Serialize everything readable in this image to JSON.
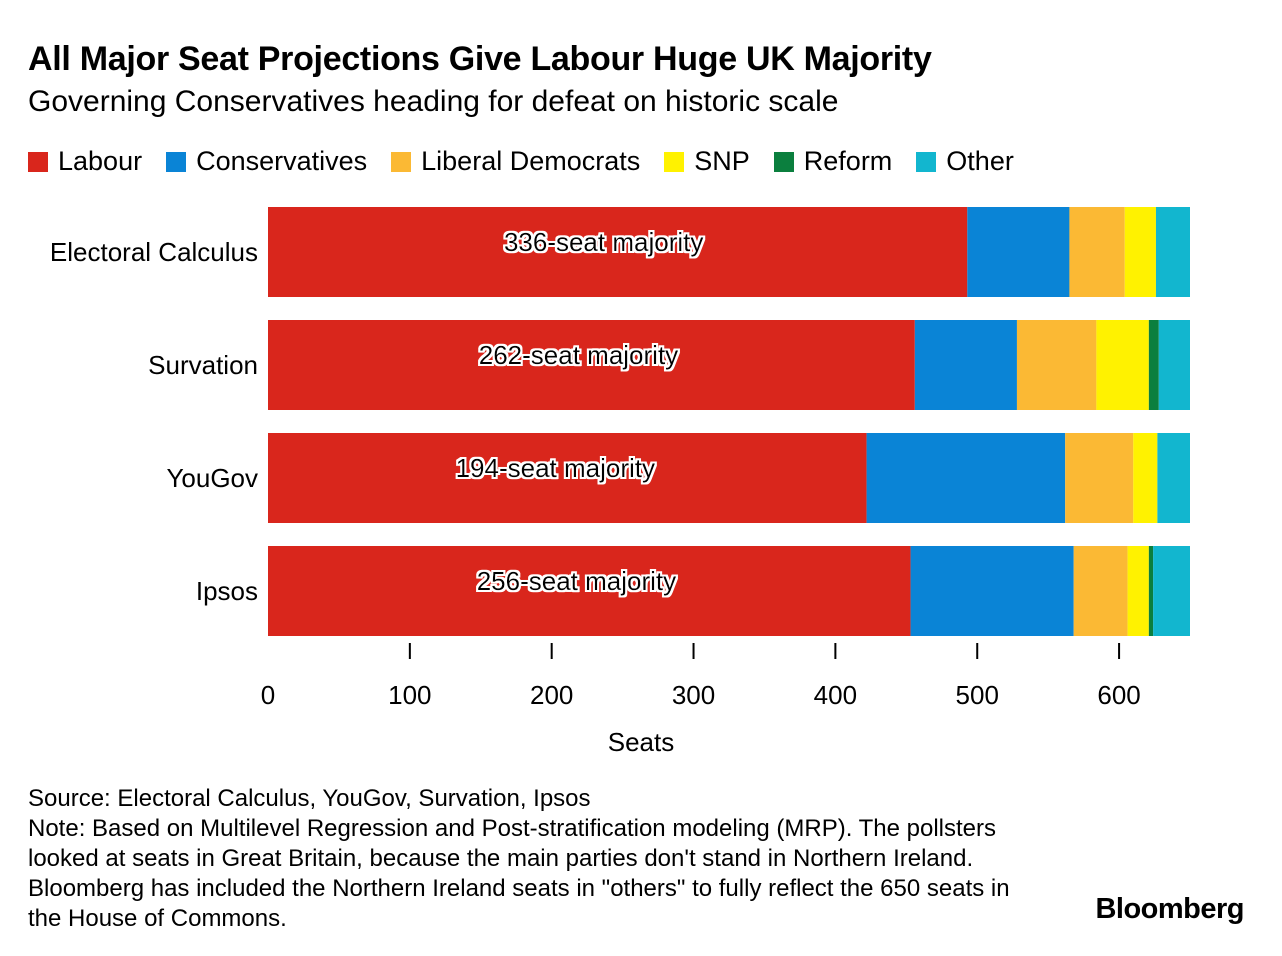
{
  "title": "All Major Seat Projections Give Labour Huge UK Majority",
  "subtitle": "Governing Conservatives heading for defeat on historic scale",
  "legend": [
    {
      "label": "Labour",
      "color": "#d9261c"
    },
    {
      "label": "Conservatives",
      "color": "#0a84d6"
    },
    {
      "label": "Liberal Democrats",
      "color": "#fbb934"
    },
    {
      "label": "SNP",
      "color": "#fff200"
    },
    {
      "label": "Reform",
      "color": "#0b7f3e"
    },
    {
      "label": "Other",
      "color": "#12b6cf"
    }
  ],
  "chart_data": {
    "type": "bar",
    "orientation": "horizontal",
    "stacked": true,
    "categories": [
      "Electoral Calculus",
      "Survation",
      "YouGov",
      "Ipsos"
    ],
    "series": [
      {
        "name": "Labour",
        "color": "#d9261c",
        "values": [
          493,
          456,
          422,
          453
        ]
      },
      {
        "name": "Conservatives",
        "color": "#0a84d6",
        "values": [
          72,
          72,
          140,
          115
        ]
      },
      {
        "name": "Liberal Democrats",
        "color": "#fbb934",
        "values": [
          39,
          56,
          48,
          38
        ]
      },
      {
        "name": "SNP",
        "color": "#fff200",
        "values": [
          22,
          37,
          17,
          15
        ]
      },
      {
        "name": "Reform",
        "color": "#0b7f3e",
        "values": [
          0,
          7,
          0,
          3
        ]
      },
      {
        "name": "Other",
        "color": "#12b6cf",
        "values": [
          24,
          22,
          23,
          26
        ]
      }
    ],
    "annotations": [
      "336-seat majority",
      "262-seat majority",
      "194-seat majority",
      "256-seat majority"
    ],
    "xlabel": "Seats",
    "xticks": [
      0,
      100,
      200,
      300,
      400,
      500,
      600
    ],
    "xlim": [
      0,
      650
    ]
  },
  "footer": {
    "source": "Source: Electoral Calculus, YouGov, Survation, Ipsos",
    "note": "Note: Based on Multilevel Regression and Post-stratification modeling (MRP). The pollsters looked at seats in Great Britain, because the main parties don't stand in Northern Ireland. Bloomberg has included the Northern Ireland seats in \"others\" to fully reflect the 650 seats in the House of Commons."
  },
  "brand": "Bloomberg"
}
